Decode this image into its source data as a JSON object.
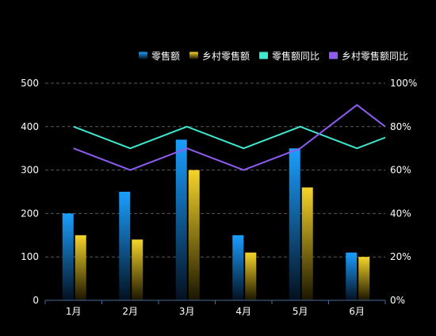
{
  "chart_data": {
    "type": "bar",
    "categories": [
      "1月",
      "2月",
      "3月",
      "4月",
      "5月",
      "6月"
    ],
    "series": [
      {
        "name": "零售额",
        "kind": "bar",
        "axis": "left",
        "values": [
          200,
          250,
          370,
          150,
          350,
          110
        ],
        "color_top": "#1a9fff",
        "color_bottom": "#04101f"
      },
      {
        "name": "乡村零售额",
        "kind": "bar",
        "axis": "left",
        "values": [
          150,
          140,
          300,
          110,
          260,
          100
        ],
        "color_top": "#f5d42a",
        "color_bottom": "#1a1500"
      },
      {
        "name": "零售额同比",
        "kind": "line",
        "axis": "right",
        "values": [
          80,
          70,
          80,
          70,
          80,
          70
        ],
        "end_value": 75,
        "color": "#3ee8cf"
      },
      {
        "name": "乡村零售额同比",
        "kind": "line",
        "axis": "right",
        "values": [
          70,
          60,
          70,
          60,
          70,
          90
        ],
        "end_value": 80,
        "color": "#8f5cf0"
      }
    ],
    "y_left": {
      "min": 0,
      "max": 500,
      "ticks": [
        0,
        100,
        200,
        300,
        400,
        500
      ]
    },
    "y_right": {
      "min": 0,
      "max": 100,
      "ticks": [
        "0%",
        "20%",
        "40%",
        "60%",
        "80%",
        "100%"
      ]
    },
    "grid": true,
    "legend_position": "top-right",
    "text_color": "#ffffff",
    "grid_color": "#5a5a5a",
    "axis_color": "#4a6a9a"
  }
}
